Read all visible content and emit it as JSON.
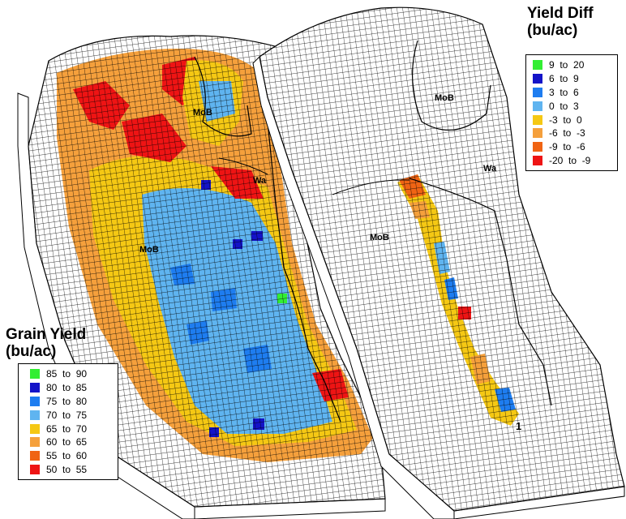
{
  "yield_legend": {
    "title_line1": "Grain Yield",
    "title_line2": "(bu/ac)",
    "classes": [
      {
        "label": "85  to  90",
        "color": "#33ee33"
      },
      {
        "label": "80  to  85",
        "color": "#1414c8"
      },
      {
        "label": "75  to  80",
        "color": "#1e7df0"
      },
      {
        "label": "70  to  75",
        "color": "#5fb4f0"
      },
      {
        "label": "65  to  70",
        "color": "#f5c814"
      },
      {
        "label": "60  to  65",
        "color": "#f5a03c"
      },
      {
        "label": "55  to  60",
        "color": "#f06414"
      },
      {
        "label": "50  to  55",
        "color": "#ee1414"
      }
    ]
  },
  "diff_legend": {
    "title_line1": "Yield Diff",
    "title_line2": "(bu/ac)",
    "classes": [
      {
        "label": "9  to  20",
        "color": "#33ee33"
      },
      {
        "label": "6  to  9",
        "color": "#1414c8"
      },
      {
        "label": "3  to  6",
        "color": "#1e7df0"
      },
      {
        "label": "0  to  3",
        "color": "#5fb4f0"
      },
      {
        "label": "-3  to  0",
        "color": "#f5c814"
      },
      {
        "label": "-6  to  -3",
        "color": "#f5a03c"
      },
      {
        "label": "-9  to  -6",
        "color": "#f06414"
      },
      {
        "label": "-20  to  -9",
        "color": "#ee1414"
      }
    ]
  },
  "left_map": {
    "soil_labels": {
      "top": "MoB",
      "wa": "Wa",
      "mid": "MoB"
    }
  },
  "right_map": {
    "soil_labels": {
      "top": "MoB",
      "wa": "Wa",
      "mid": "MoB",
      "strip_end": "1"
    }
  }
}
